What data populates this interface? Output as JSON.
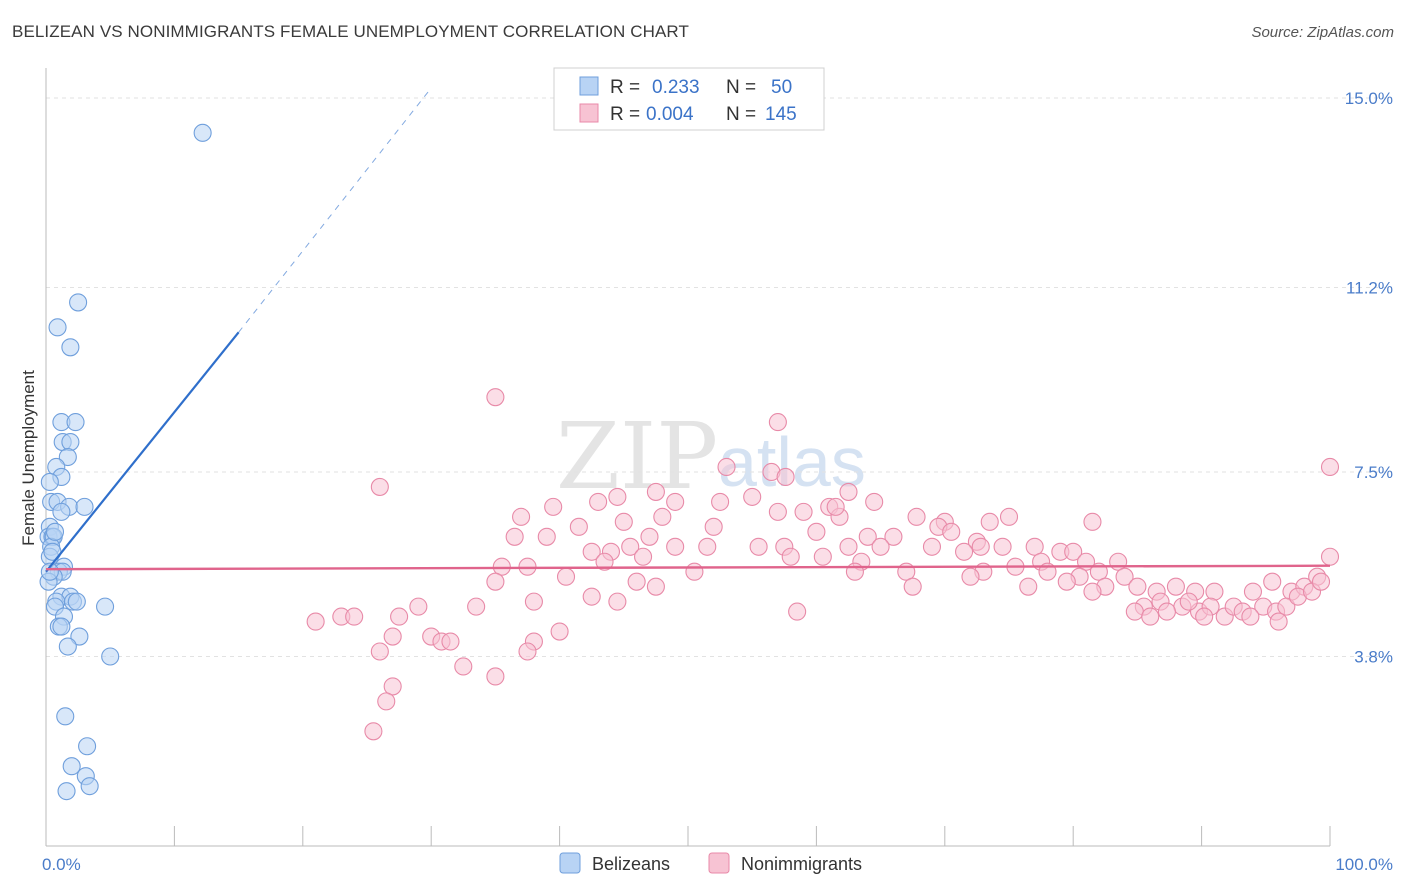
{
  "title": "BELIZEAN VS NONIMMIGRANTS FEMALE UNEMPLOYMENT CORRELATION CHART",
  "source": "Source: ZipAtlas.com",
  "watermark": {
    "zip": "ZIP",
    "atlas": "atlas"
  },
  "colors": {
    "blue_fill": "#b8d3f4",
    "blue_stroke": "#6f9fdc",
    "blue_line": "#2f6fcb",
    "pink_fill": "#f7c3d3",
    "pink_stroke": "#e88aa8",
    "pink_line": "#e0648c",
    "grid": "#e2e2e2",
    "tick_text": "#4a7cc9"
  },
  "legend": {
    "rows": [
      {
        "r_label": "R =",
        "r_value": "0.233",
        "n_label": "N =",
        "n_value": "50"
      },
      {
        "r_label": "R =",
        "r_value": "0.004",
        "n_label": "N =",
        "n_value": "145"
      }
    ]
  },
  "bottom_legend": [
    "Belizeans",
    "Nonimmigrants"
  ],
  "chart_data": {
    "type": "scatter",
    "title": "BELIZEAN VS NONIMMIGRANTS FEMALE UNEMPLOYMENT CORRELATION CHART",
    "xlabel": "",
    "ylabel": "Female Unemployment",
    "xlim": [
      0,
      100
    ],
    "ylim": [
      0,
      15.4
    ],
    "x_tick_labels": [
      "0.0%",
      "100.0%"
    ],
    "y_ticks": [
      {
        "value": 3.8,
        "label": "3.8%"
      },
      {
        "value": 7.5,
        "label": "7.5%"
      },
      {
        "value": 11.2,
        "label": "11.2%"
      },
      {
        "value": 15.0,
        "label": "15.0%"
      }
    ],
    "grid": "horizontal dashed",
    "legend_position": "top-center",
    "series": [
      {
        "name": "Belizeans",
        "r": 0.233,
        "n": 50,
        "trend": {
          "x0": 0.0,
          "y0": 5.5,
          "x1": 15.0,
          "y1": 10.3,
          "dashed_to_x": 30.0,
          "dashed_to_y": 15.2
        },
        "points": [
          [
            12.2,
            14.3
          ],
          [
            2.5,
            10.9
          ],
          [
            0.9,
            10.4
          ],
          [
            1.9,
            10.0
          ],
          [
            1.2,
            8.5
          ],
          [
            2.3,
            8.5
          ],
          [
            1.3,
            8.1
          ],
          [
            1.9,
            8.1
          ],
          [
            1.7,
            7.8
          ],
          [
            0.8,
            7.6
          ],
          [
            1.2,
            7.4
          ],
          [
            0.3,
            7.3
          ],
          [
            0.4,
            6.9
          ],
          [
            0.9,
            6.9
          ],
          [
            1.8,
            6.8
          ],
          [
            3.0,
            6.8
          ],
          [
            1.2,
            6.7
          ],
          [
            0.3,
            6.4
          ],
          [
            0.2,
            6.2
          ],
          [
            0.5,
            6.2
          ],
          [
            0.6,
            6.2
          ],
          [
            0.4,
            6.0
          ],
          [
            0.3,
            5.8
          ],
          [
            1.4,
            5.6
          ],
          [
            1.0,
            5.5
          ],
          [
            1.3,
            5.5
          ],
          [
            0.6,
            5.4
          ],
          [
            0.2,
            5.3
          ],
          [
            1.2,
            5.0
          ],
          [
            1.9,
            5.0
          ],
          [
            0.8,
            4.9
          ],
          [
            2.1,
            4.9
          ],
          [
            2.4,
            4.9
          ],
          [
            0.7,
            4.8
          ],
          [
            4.6,
            4.8
          ],
          [
            1.4,
            4.6
          ],
          [
            1.0,
            4.4
          ],
          [
            1.2,
            4.4
          ],
          [
            2.6,
            4.2
          ],
          [
            1.7,
            4.0
          ],
          [
            5.0,
            3.8
          ],
          [
            1.5,
            2.6
          ],
          [
            3.2,
            2.0
          ],
          [
            2.0,
            1.6
          ],
          [
            3.1,
            1.4
          ],
          [
            3.4,
            1.2
          ],
          [
            1.6,
            1.1
          ],
          [
            0.3,
            5.5
          ],
          [
            0.5,
            5.9
          ],
          [
            0.7,
            6.3
          ]
        ]
      },
      {
        "name": "Nonimmigrants",
        "r": 0.004,
        "n": 145,
        "trend": {
          "x0": 0.0,
          "y0": 5.55,
          "x1": 100.0,
          "y1": 5.62
        },
        "points": [
          [
            35.0,
            9.0
          ],
          [
            57.0,
            8.5
          ],
          [
            53.0,
            7.6
          ],
          [
            56.5,
            7.5
          ],
          [
            26.0,
            7.2
          ],
          [
            47.5,
            7.1
          ],
          [
            62.5,
            7.1
          ],
          [
            100.0,
            7.6
          ],
          [
            52.5,
            6.9
          ],
          [
            55.0,
            7.0
          ],
          [
            44.5,
            7.0
          ],
          [
            49.0,
            6.9
          ],
          [
            64.5,
            6.9
          ],
          [
            39.5,
            6.8
          ],
          [
            43.0,
            6.9
          ],
          [
            57.0,
            6.7
          ],
          [
            59.0,
            6.7
          ],
          [
            61.0,
            6.8
          ],
          [
            37.0,
            6.6
          ],
          [
            48.0,
            6.6
          ],
          [
            61.8,
            6.6
          ],
          [
            67.8,
            6.6
          ],
          [
            70.0,
            6.5
          ],
          [
            73.5,
            6.5
          ],
          [
            75.0,
            6.6
          ],
          [
            45.0,
            6.5
          ],
          [
            41.5,
            6.4
          ],
          [
            60.0,
            6.3
          ],
          [
            66.0,
            6.2
          ],
          [
            64.0,
            6.2
          ],
          [
            69.5,
            6.4
          ],
          [
            70.5,
            6.3
          ],
          [
            36.5,
            6.2
          ],
          [
            39.0,
            6.2
          ],
          [
            47.0,
            6.2
          ],
          [
            49.0,
            6.0
          ],
          [
            45.5,
            6.0
          ],
          [
            51.5,
            6.0
          ],
          [
            55.5,
            6.0
          ],
          [
            57.5,
            6.0
          ],
          [
            62.5,
            6.0
          ],
          [
            65.0,
            6.0
          ],
          [
            69.0,
            6.0
          ],
          [
            72.5,
            6.1
          ],
          [
            74.5,
            6.0
          ],
          [
            77.0,
            6.0
          ],
          [
            79.0,
            5.9
          ],
          [
            80.0,
            5.9
          ],
          [
            81.5,
            6.5
          ],
          [
            42.5,
            5.9
          ],
          [
            44.0,
            5.9
          ],
          [
            46.5,
            5.8
          ],
          [
            58.0,
            5.8
          ],
          [
            60.5,
            5.8
          ],
          [
            63.5,
            5.7
          ],
          [
            71.5,
            5.9
          ],
          [
            77.5,
            5.7
          ],
          [
            81.0,
            5.7
          ],
          [
            83.5,
            5.7
          ],
          [
            35.5,
            5.6
          ],
          [
            37.5,
            5.6
          ],
          [
            43.5,
            5.7
          ],
          [
            50.5,
            5.5
          ],
          [
            63.0,
            5.5
          ],
          [
            67.0,
            5.5
          ],
          [
            73.0,
            5.5
          ],
          [
            75.5,
            5.6
          ],
          [
            78.0,
            5.5
          ],
          [
            80.5,
            5.4
          ],
          [
            82.0,
            5.5
          ],
          [
            84.0,
            5.4
          ],
          [
            35.0,
            5.3
          ],
          [
            40.5,
            5.4
          ],
          [
            46.0,
            5.3
          ],
          [
            47.5,
            5.2
          ],
          [
            67.5,
            5.2
          ],
          [
            72.0,
            5.4
          ],
          [
            76.5,
            5.2
          ],
          [
            79.5,
            5.3
          ],
          [
            82.5,
            5.2
          ],
          [
            85.0,
            5.2
          ],
          [
            86.5,
            5.1
          ],
          [
            88.0,
            5.2
          ],
          [
            89.5,
            5.1
          ],
          [
            91.0,
            5.1
          ],
          [
            94.0,
            5.1
          ],
          [
            95.5,
            5.3
          ],
          [
            97.0,
            5.1
          ],
          [
            98.0,
            5.2
          ],
          [
            99.0,
            5.4
          ],
          [
            100.0,
            5.8
          ],
          [
            42.5,
            5.0
          ],
          [
            44.5,
            4.9
          ],
          [
            29.0,
            4.8
          ],
          [
            33.5,
            4.8
          ],
          [
            38.0,
            4.9
          ],
          [
            58.5,
            4.7
          ],
          [
            81.5,
            5.1
          ],
          [
            85.5,
            4.8
          ],
          [
            86.8,
            4.9
          ],
          [
            88.5,
            4.8
          ],
          [
            89.8,
            4.7
          ],
          [
            90.7,
            4.8
          ],
          [
            91.8,
            4.6
          ],
          [
            92.5,
            4.8
          ],
          [
            93.2,
            4.7
          ],
          [
            94.8,
            4.8
          ],
          [
            95.8,
            4.7
          ],
          [
            96.6,
            4.8
          ],
          [
            97.5,
            5.0
          ],
          [
            98.6,
            5.1
          ],
          [
            99.3,
            5.3
          ],
          [
            87.3,
            4.7
          ],
          [
            89.0,
            4.9
          ],
          [
            93.8,
            4.6
          ],
          [
            96.0,
            4.5
          ],
          [
            84.8,
            4.7
          ],
          [
            86.0,
            4.6
          ],
          [
            90.2,
            4.6
          ],
          [
            23.0,
            4.6
          ],
          [
            24.0,
            4.6
          ],
          [
            21.0,
            4.5
          ],
          [
            30.0,
            4.2
          ],
          [
            30.8,
            4.1
          ],
          [
            31.5,
            4.1
          ],
          [
            38.0,
            4.1
          ],
          [
            40.0,
            4.3
          ],
          [
            27.0,
            4.2
          ],
          [
            37.5,
            3.9
          ],
          [
            26.0,
            3.9
          ],
          [
            32.5,
            3.6
          ],
          [
            35.0,
            3.4
          ],
          [
            27.0,
            3.2
          ],
          [
            26.5,
            2.9
          ],
          [
            25.5,
            2.3
          ],
          [
            27.5,
            4.6
          ],
          [
            57.6,
            7.4
          ],
          [
            52.0,
            6.4
          ],
          [
            61.5,
            6.8
          ],
          [
            72.8,
            6.0
          ]
        ]
      }
    ]
  }
}
